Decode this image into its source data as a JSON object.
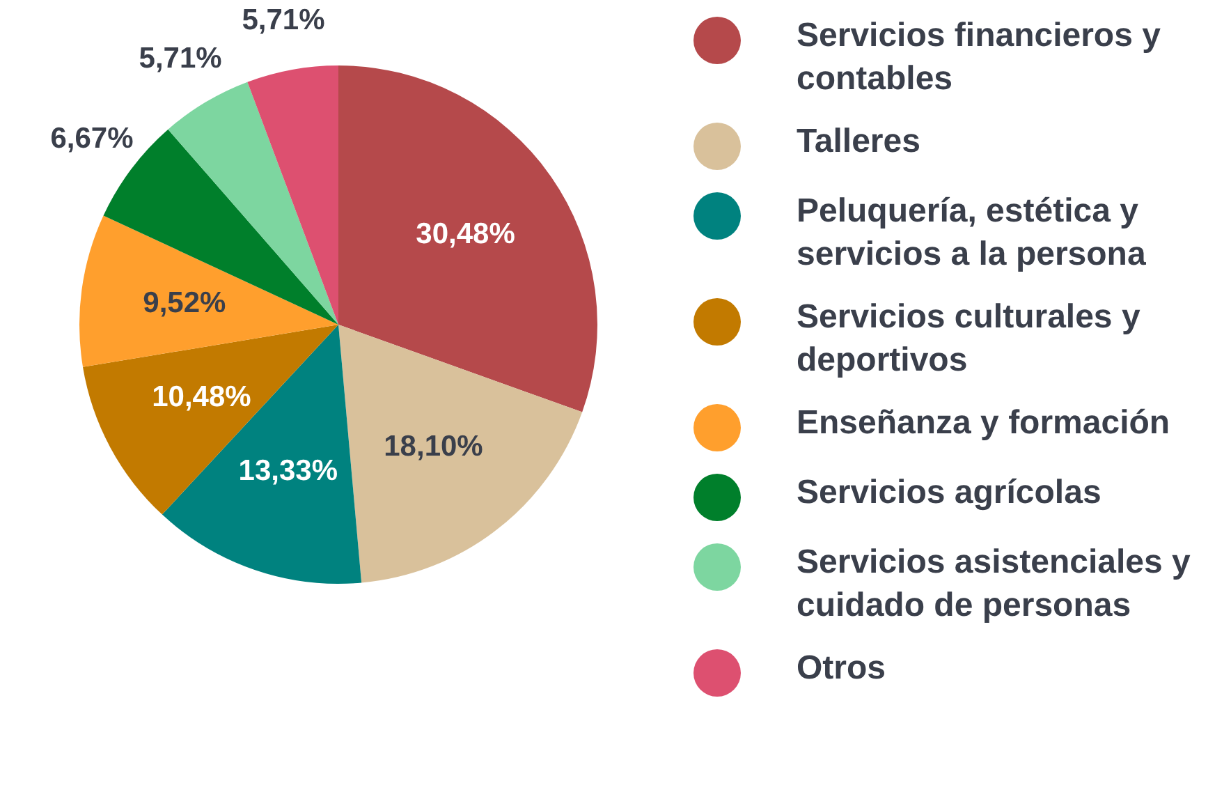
{
  "chart_data": {
    "type": "pie",
    "categories": [
      "Servicios financieros y contables",
      "Talleres",
      "Peluquería, estética y servicios a la persona",
      "Servicios culturales y deportivos",
      "Enseñanza y formación",
      "Servicios agrícolas",
      "Servicios asistenciales y cuidado de personas",
      "Otros"
    ],
    "values": [
      30.48,
      18.1,
      13.33,
      10.48,
      9.52,
      6.67,
      5.71,
      5.71
    ],
    "value_labels": [
      "30,48%",
      "18,10%",
      "13,33%",
      "10,48%",
      "9,52%",
      "6,67%",
      "5,71%",
      "5,71%"
    ],
    "colors": [
      "#b5494b",
      "#d9c19b",
      "#00827f",
      "#c27a00",
      "#ff9f2d",
      "#007f2b",
      "#7dd6a0",
      "#dd5070"
    ],
    "legend": "right"
  }
}
